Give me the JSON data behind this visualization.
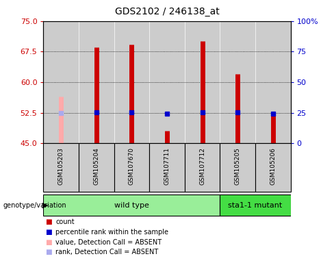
{
  "title": "GDS2102 / 246138_at",
  "samples": [
    "GSM105203",
    "GSM105204",
    "GSM107670",
    "GSM107711",
    "GSM107712",
    "GSM105205",
    "GSM105206"
  ],
  "count_values": [
    null,
    68.5,
    69.2,
    48.0,
    70.0,
    62.0,
    52.5
  ],
  "absent_value": [
    56.5,
    null,
    null,
    null,
    null,
    null,
    null
  ],
  "rank_pct": [
    null,
    25.5,
    25.5,
    24.5,
    25.5,
    25.5,
    24.0
  ],
  "absent_rank_pct": [
    24.8,
    null,
    null,
    null,
    null,
    null,
    null
  ],
  "ylim_left": [
    45,
    75
  ],
  "ylim_right": [
    0,
    100
  ],
  "yticks_left": [
    45,
    52.5,
    60,
    67.5,
    75
  ],
  "yticks_right": [
    0,
    25,
    50,
    75,
    100
  ],
  "color_count": "#cc0000",
  "color_absent_value": "#ffaaaa",
  "color_rank": "#0000cc",
  "color_absent_rank": "#aaaaee",
  "bg_sample": "#cccccc",
  "bg_wild": "#99ee99",
  "bg_mutant": "#44dd44",
  "baseline": 45,
  "wild_count": 5,
  "line_width": 5
}
